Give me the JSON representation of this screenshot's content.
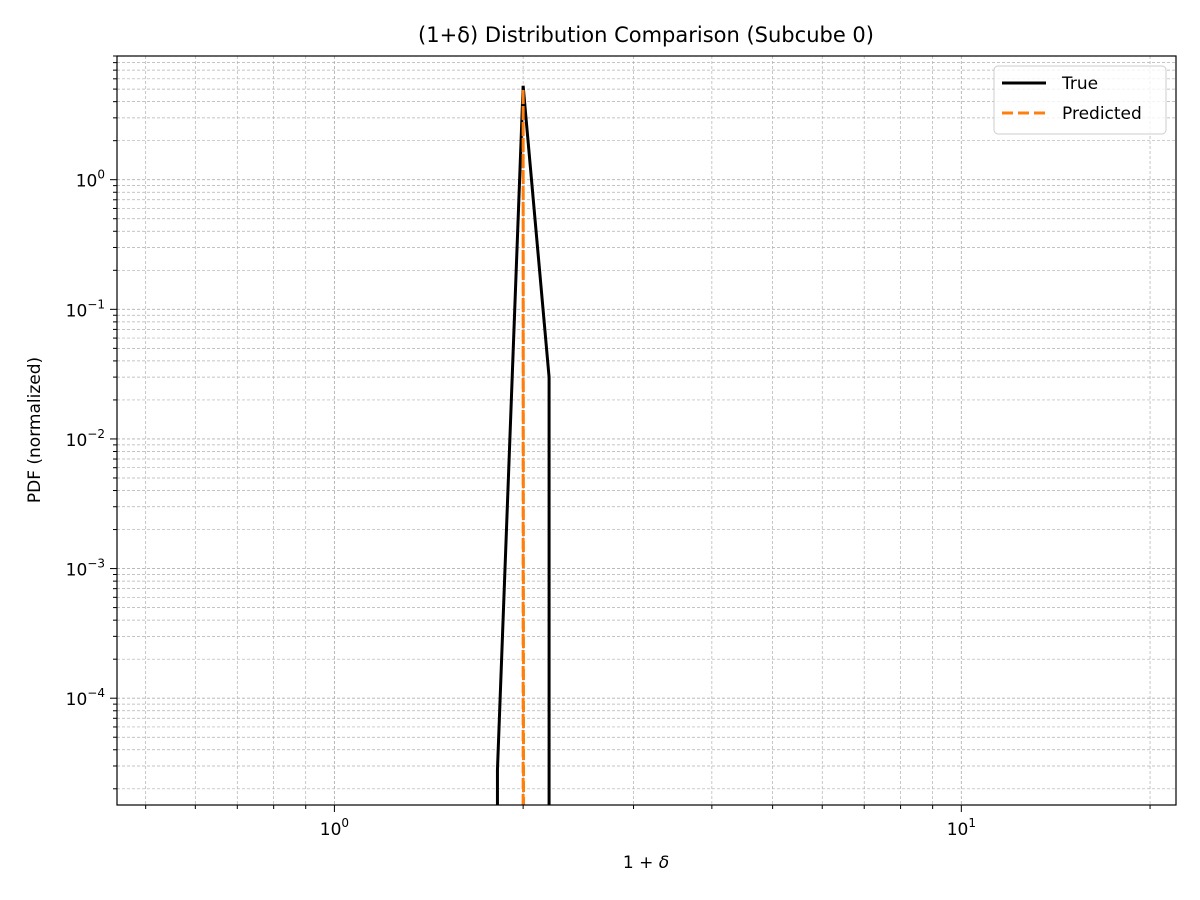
{
  "chart_data": {
    "type": "line",
    "title": "(1+δ) Distribution Comparison (Subcube 0)",
    "xlabel_base": "1 + ",
    "xlabel_symbol": "δ",
    "ylabel": "PDF (normalized)",
    "xscale": "log",
    "yscale": "log",
    "xlim": [
      0.45,
      22
    ],
    "ylim": [
      1.5e-05,
      9
    ],
    "grid": {
      "major": true,
      "minor": true,
      "style": "dashed"
    },
    "legend_position": "top-right",
    "x_ticks": [
      {
        "value": 1,
        "base": "10",
        "exp": "0"
      },
      {
        "value": 10,
        "base": "10",
        "exp": "1"
      }
    ],
    "y_ticks": [
      {
        "value": 1,
        "base": "10",
        "exp": "0"
      },
      {
        "value": 0.1,
        "base": "10",
        "exp": "−1"
      },
      {
        "value": 0.01,
        "base": "10",
        "exp": "−2"
      },
      {
        "value": 0.001,
        "base": "10",
        "exp": "−3"
      },
      {
        "value": 0.0001,
        "base": "10",
        "exp": "−4"
      }
    ],
    "series": [
      {
        "name": "True",
        "color": "#000000",
        "dash": "solid",
        "points": [
          {
            "x": 1.82,
            "y": 1.5e-05
          },
          {
            "x": 1.82,
            "y": 2.8e-05
          },
          {
            "x": 2.0,
            "y": 5.3
          },
          {
            "x": 2.2,
            "y": 0.03
          },
          {
            "x": 2.2,
            "y": 1.5e-05
          }
        ]
      },
      {
        "name": "Predicted",
        "color": "#ff7f0e",
        "dash": "dashed",
        "points": [
          {
            "x": 2.0,
            "y": 1.5e-05
          },
          {
            "x": 2.0,
            "y": 5.0
          },
          {
            "x": 2.003,
            "y": 1.5e-05
          }
        ]
      }
    ]
  }
}
